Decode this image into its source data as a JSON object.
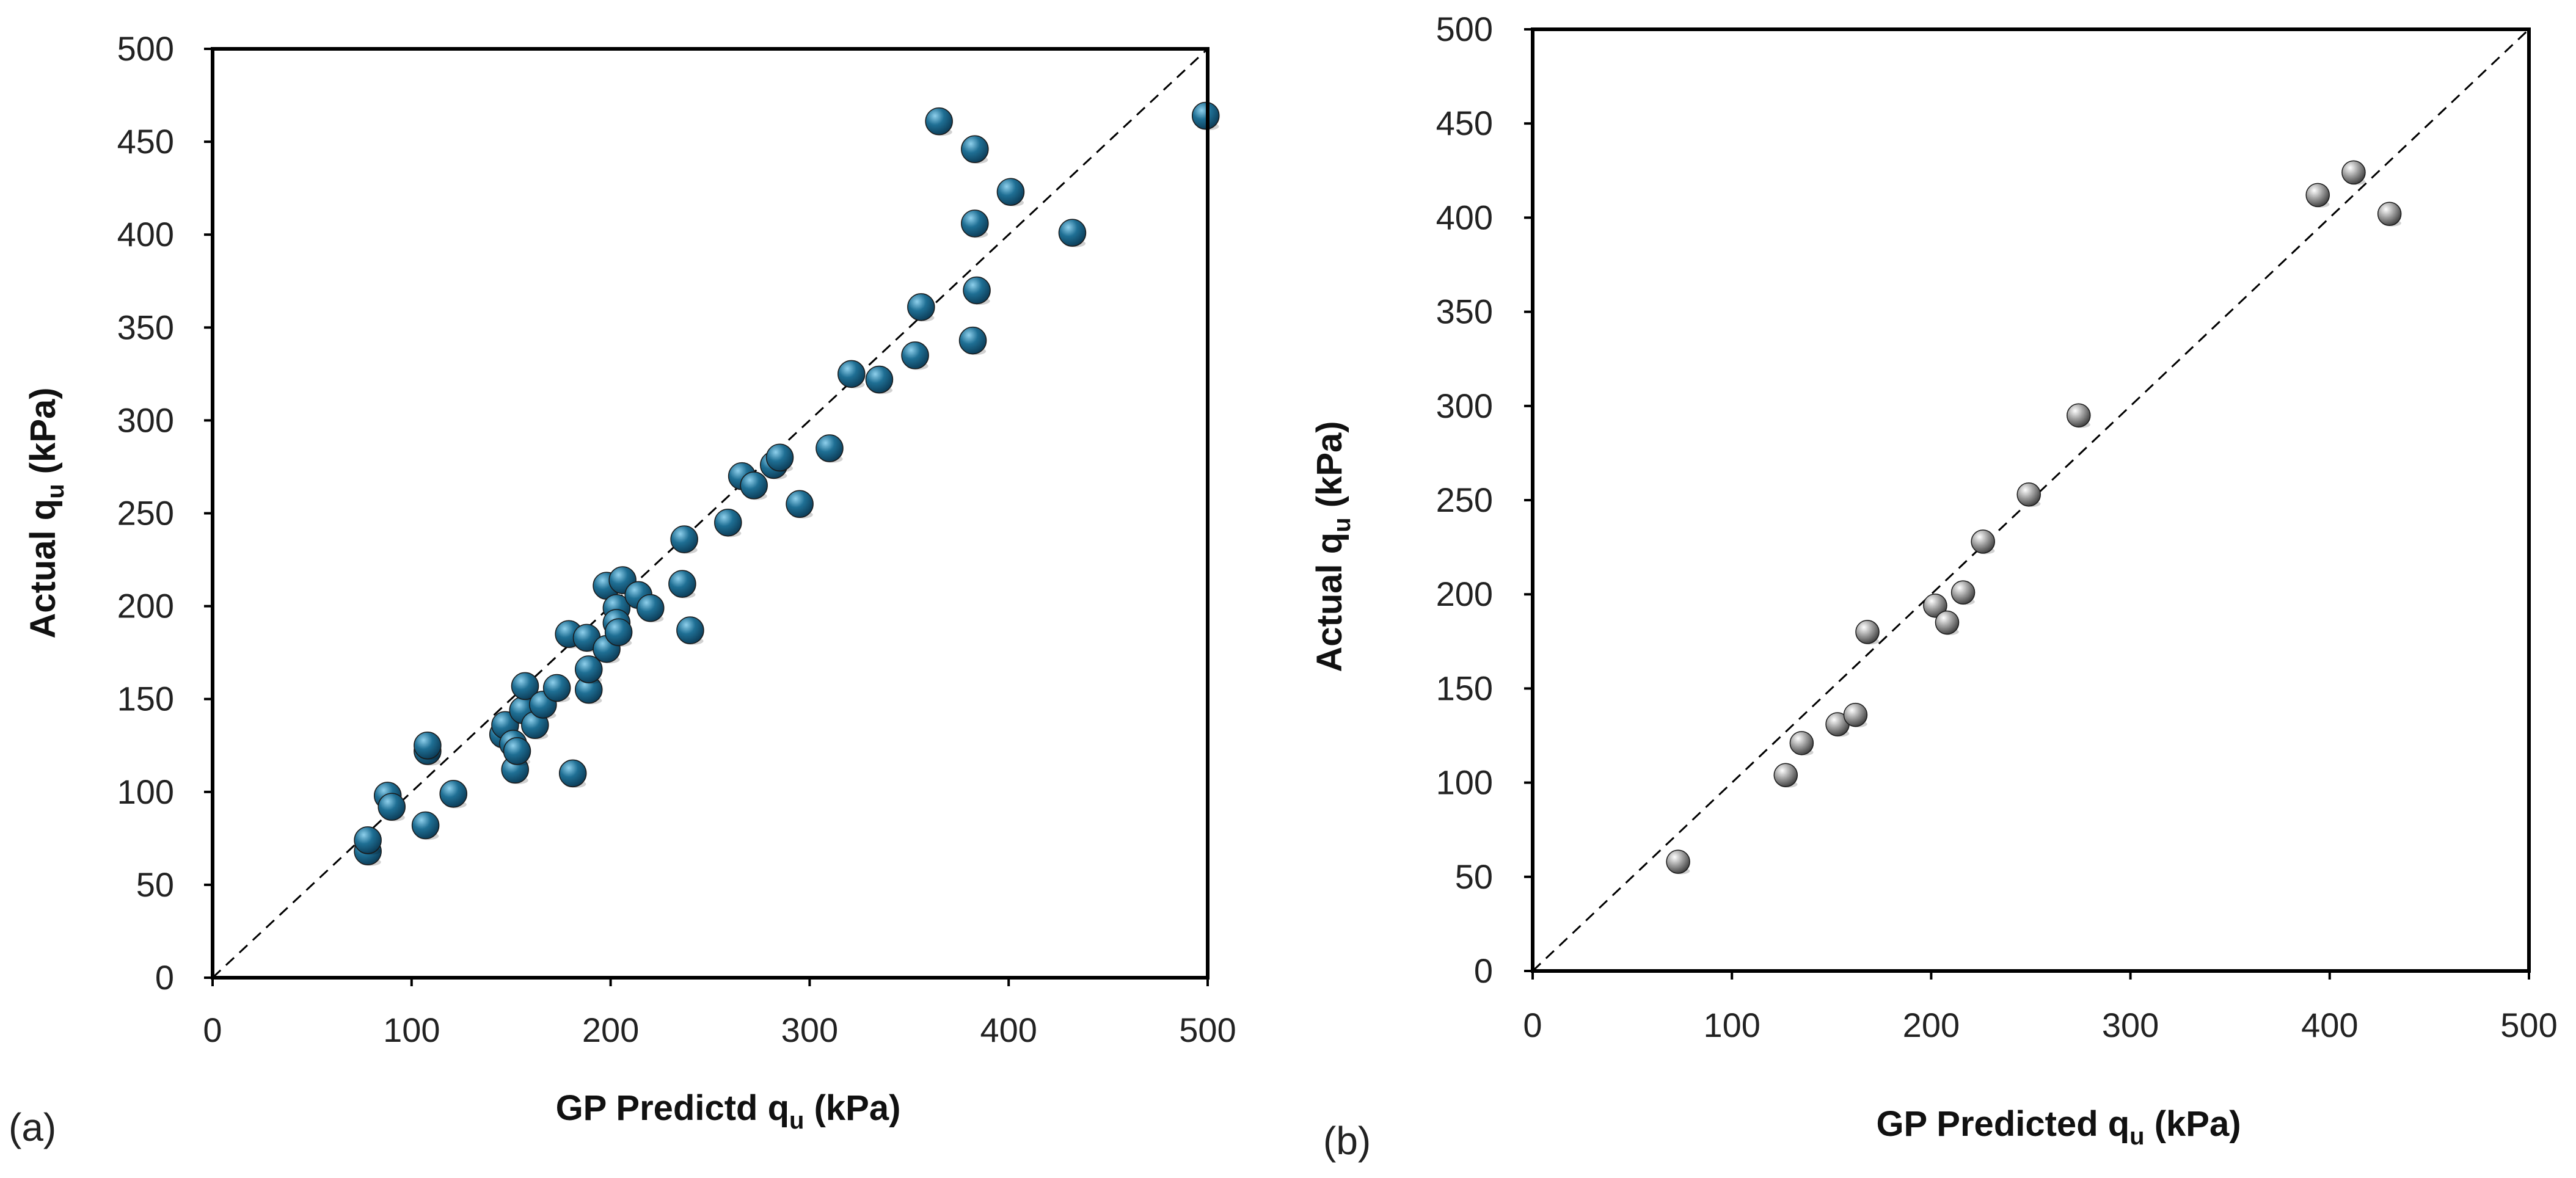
{
  "colors": {
    "panel_a_marker": "#1f6f94",
    "panel_b_marker": "#9a9a9a",
    "frame": "#000000",
    "reference_line": "#000000"
  },
  "chart_data": [
    {
      "type": "scatter",
      "panel_label": "(a)",
      "xlabel": {
        "main": "GP Predictd q",
        "sub": "u",
        "unit": " (kPa)"
      },
      "ylabel": {
        "main": "Actual q",
        "sub": "u",
        "unit": " (kPa)"
      },
      "xlim": [
        0,
        500
      ],
      "ylim": [
        0,
        500
      ],
      "x_ticks": [
        "0",
        "100",
        "200",
        "300",
        "400",
        "500"
      ],
      "y_ticks": [
        "0",
        "50",
        "100",
        "150",
        "200",
        "250",
        "300",
        "350",
        "400",
        "450",
        "500"
      ],
      "reference_line": "y = x (dashed)",
      "marker_style": "sphere",
      "points": [
        [
          78,
          68
        ],
        [
          78,
          74
        ],
        [
          88,
          98
        ],
        [
          90,
          92
        ],
        [
          107,
          82
        ],
        [
          108,
          122
        ],
        [
          108,
          125
        ],
        [
          121,
          99
        ],
        [
          146,
          131
        ],
        [
          147,
          136
        ],
        [
          151,
          126
        ],
        [
          152,
          112
        ],
        [
          153,
          122
        ],
        [
          156,
          144
        ],
        [
          157,
          157
        ],
        [
          162,
          136
        ],
        [
          166,
          147
        ],
        [
          173,
          156
        ],
        [
          179,
          185
        ],
        [
          181,
          110
        ],
        [
          188,
          183
        ],
        [
          189,
          155
        ],
        [
          189,
          166
        ],
        [
          198,
          211
        ],
        [
          198,
          177
        ],
        [
          203,
          199
        ],
        [
          203,
          191
        ],
        [
          204,
          186
        ],
        [
          206,
          214
        ],
        [
          214,
          206
        ],
        [
          220,
          199
        ],
        [
          236,
          212
        ],
        [
          237,
          236
        ],
        [
          240,
          187
        ],
        [
          259,
          245
        ],
        [
          266,
          270
        ],
        [
          272,
          265
        ],
        [
          282,
          276
        ],
        [
          285,
          280
        ],
        [
          295,
          255
        ],
        [
          310,
          285
        ],
        [
          321,
          325
        ],
        [
          335,
          322
        ],
        [
          353,
          335
        ],
        [
          356,
          361
        ],
        [
          365,
          461
        ],
        [
          382,
          343
        ],
        [
          383,
          446
        ],
        [
          383,
          406
        ],
        [
          384,
          370
        ],
        [
          401,
          423
        ],
        [
          432,
          401
        ],
        [
          499,
          464
        ]
      ]
    },
    {
      "type": "scatter",
      "panel_label": "(b)",
      "xlabel": {
        "main": "GP Predicted q",
        "sub": "u",
        "unit": " (kPa)"
      },
      "ylabel": {
        "main": "Actual q",
        "sub": "u",
        "unit": " (kPa)"
      },
      "xlim": [
        0,
        500
      ],
      "ylim": [
        0,
        500
      ],
      "x_ticks": [
        "0",
        "100",
        "200",
        "300",
        "400",
        "500"
      ],
      "y_ticks": [
        "0",
        "50",
        "100",
        "150",
        "200",
        "250",
        "300",
        "350",
        "400",
        "450",
        "500"
      ],
      "reference_line": "y = x (dashed)",
      "marker_style": "sphere",
      "points": [
        [
          73,
          58
        ],
        [
          127,
          104
        ],
        [
          135,
          121
        ],
        [
          153,
          131
        ],
        [
          162,
          136
        ],
        [
          168,
          180
        ],
        [
          202,
          194
        ],
        [
          208,
          185
        ],
        [
          216,
          201
        ],
        [
          226,
          228
        ],
        [
          249,
          253
        ],
        [
          274,
          295
        ],
        [
          394,
          412
        ],
        [
          412,
          424
        ],
        [
          430,
          402
        ]
      ]
    }
  ]
}
